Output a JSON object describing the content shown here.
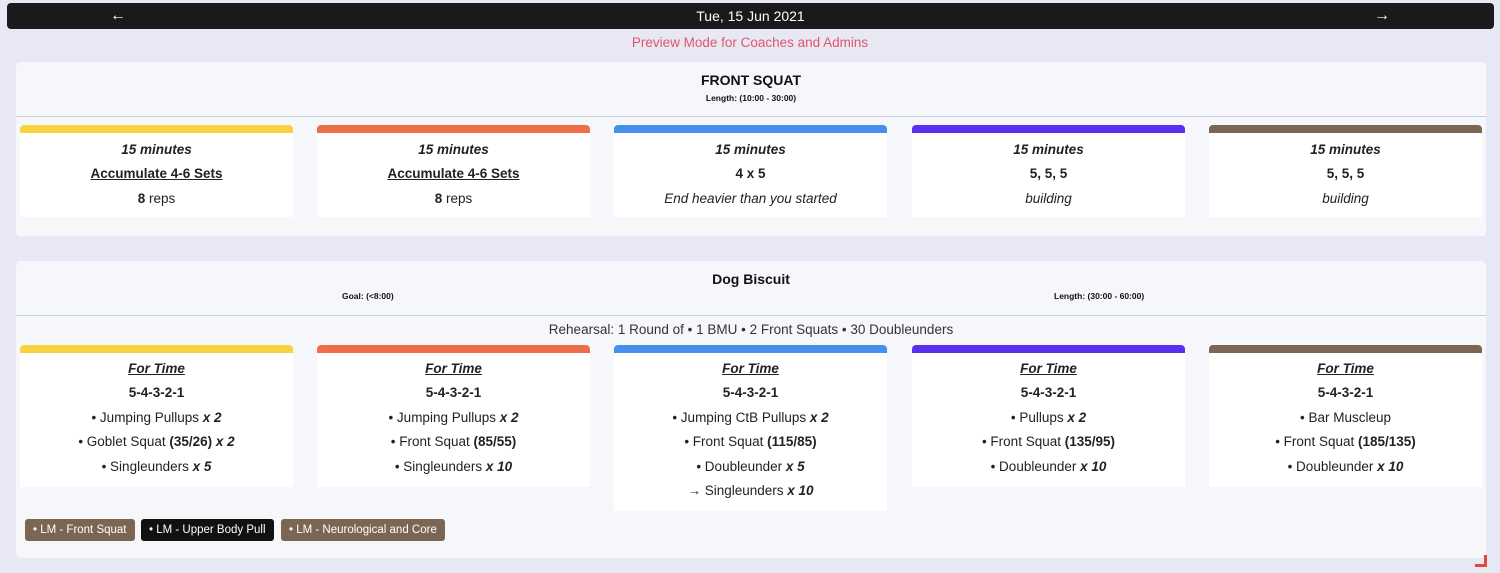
{
  "header": {
    "date": "Tue, 15 Jun 2021",
    "prev_icon": "←",
    "next_icon": "→"
  },
  "preview_text": "Preview Mode for Coaches and Admins",
  "colors": {
    "yellow": "#f8d33f",
    "orange": "#ef6e4a",
    "blue": "#4690ec",
    "purple": "#5b2ff0",
    "brown": "#7b6553",
    "preview": "#e0566d"
  },
  "front_squat": {
    "title": "FRONT SQUAT",
    "length": "Length: (10:00 - 30:00)",
    "columns": [
      {
        "time": "15 minutes",
        "scheme": "Accumulate 4-6 Sets",
        "detail_num": "8",
        "detail_unit": " reps"
      },
      {
        "time": "15 minutes",
        "scheme": "Accumulate 4-6 Sets",
        "detail_num": "8",
        "detail_unit": " reps"
      },
      {
        "time": "15 minutes",
        "scheme": "4 x 5",
        "note": "End heavier than you started"
      },
      {
        "time": "15 minutes",
        "scheme": "5, 5, 5",
        "note": "building"
      },
      {
        "time": "15 minutes",
        "scheme": "5, 5, 5",
        "note": "building"
      }
    ]
  },
  "dog_biscuit": {
    "title": "Dog Biscuit",
    "goal": "Goal: (<8:00)",
    "length": "Length: (30:00 - 60:00)",
    "rehearsal": "Rehearsal: 1 Round of • 1 BMU • 2 Front Squats • 30 Doubleunders",
    "columns": [
      {
        "type": "For Time",
        "reps": "5-4-3-2-1",
        "lines": [
          {
            "prefix": "• Jumping Pullups ",
            "weight": "",
            "mult": "x 2"
          },
          {
            "prefix": "• Goblet Squat ",
            "weight": " (35/26)",
            "mult": " x 2"
          },
          {
            "prefix": "• Singleunders ",
            "weight": "",
            "mult": "x 5"
          }
        ]
      },
      {
        "type": "For Time",
        "reps": "5-4-3-2-1",
        "lines": [
          {
            "prefix": "• Jumping Pullups ",
            "weight": "",
            "mult": "x 2"
          },
          {
            "prefix": "• Front Squat ",
            "weight": "(85/55)",
            "mult": ""
          },
          {
            "prefix": "• Singleunders ",
            "weight": "",
            "mult": "x 10"
          }
        ]
      },
      {
        "type": "For Time",
        "reps": "5-4-3-2-1",
        "lines": [
          {
            "prefix": "• Jumping CtB Pullups ",
            "weight": "",
            "mult": "x 2"
          },
          {
            "prefix": "• Front Squat ",
            "weight": "(115/85)",
            "mult": ""
          },
          {
            "prefix": "• Doubleunder ",
            "weight": "",
            "mult": "x 5"
          },
          {
            "prefix": "→  Singleunders ",
            "weight": "",
            "mult": "x 10"
          }
        ]
      },
      {
        "type": "For Time",
        "reps": "5-4-3-2-1",
        "lines": [
          {
            "prefix": "• Pullups ",
            "weight": "",
            "mult": "x 2"
          },
          {
            "prefix": "• Front Squat ",
            "weight": "(135/95)",
            "mult": ""
          },
          {
            "prefix": "• Doubleunder ",
            "weight": "",
            "mult": "x 10"
          }
        ]
      },
      {
        "type": "For Time",
        "reps": "5-4-3-2-1",
        "lines": [
          {
            "prefix": "• Bar Muscleup",
            "weight": "",
            "mult": ""
          },
          {
            "prefix": "• Front Squat ",
            "weight": "(185/135)",
            "mult": ""
          },
          {
            "prefix": "• Doubleunder ",
            "weight": "",
            "mult": "x 10"
          }
        ]
      }
    ],
    "tags": [
      {
        "label": "• LM - Front Squat",
        "color": "#7b6553"
      },
      {
        "label": "• LM - Upper Body Pull",
        "color": "#111111"
      },
      {
        "label": "• LM - Neurological and Core",
        "color": "#7b6553"
      }
    ]
  }
}
